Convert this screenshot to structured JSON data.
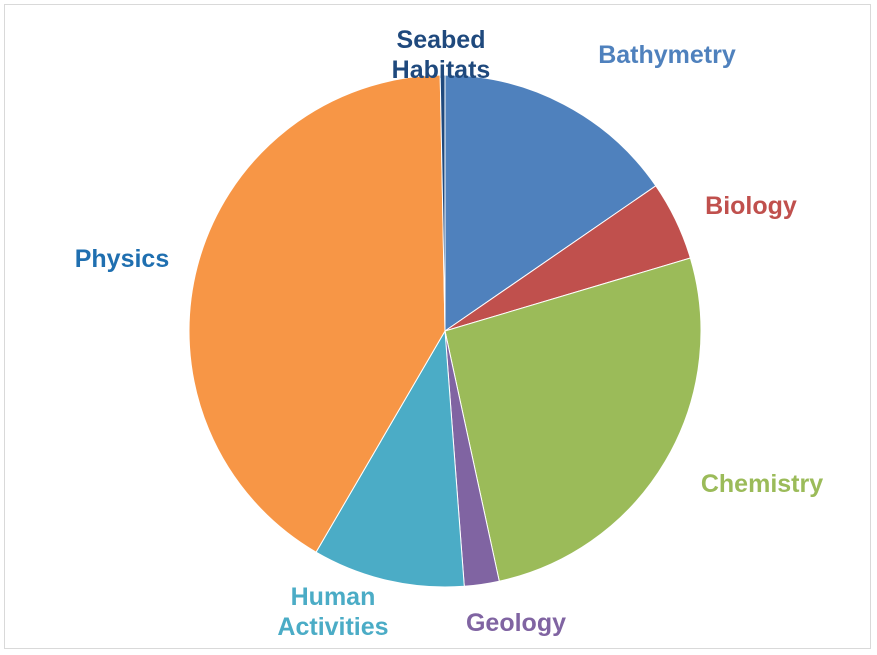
{
  "chart_data": {
    "type": "pie",
    "categories": [
      "Bathymetry",
      "Biology",
      "Chemistry",
      "Geology",
      "Human Activities",
      "Physics",
      "Seabed Habitats"
    ],
    "values": [
      15.4,
      5.0,
      26.2,
      2.2,
      9.6,
      41.3,
      0.3
    ],
    "colors": [
      "#4f81bd",
      "#c0504d",
      "#9bbb59",
      "#8064a2",
      "#4bacc6",
      "#f79646",
      "#1f497d"
    ],
    "label_colors": [
      "#4f81bd",
      "#c0504d",
      "#9bbb59",
      "#8064a2",
      "#4bacc6",
      "#1f6fb0",
      "#1f497d"
    ]
  }
}
